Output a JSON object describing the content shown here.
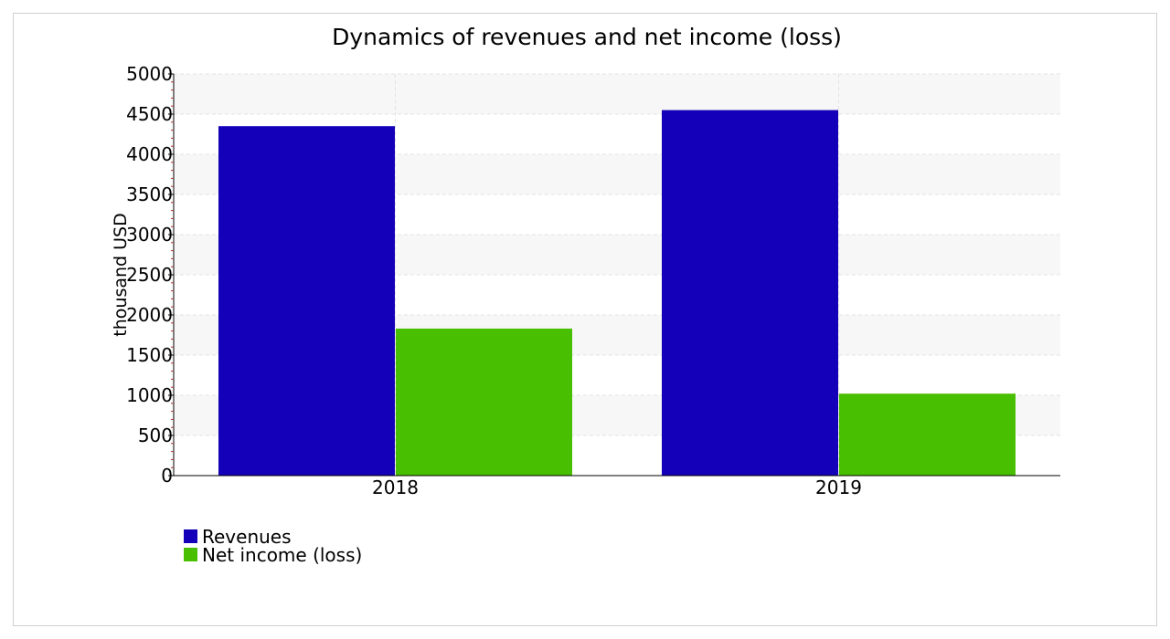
{
  "colors": {
    "revenues": "#1400b8",
    "net_income": "#48bf00",
    "band": "#f7f7f7",
    "grid": "#e3e3e3",
    "axis": "#000000",
    "frame": "#cfcfcf"
  },
  "chart_data": {
    "type": "bar",
    "title": "Dynamics of revenues and net income (loss)",
    "xlabel": "",
    "ylabel": "thousand USD",
    "categories": [
      "2018",
      "2019"
    ],
    "series": [
      {
        "name": "Revenues",
        "values": [
          4350,
          4550
        ],
        "color": "#1400b8"
      },
      {
        "name": "Net income (loss)",
        "values": [
          1830,
          1020
        ],
        "color": "#48bf00"
      }
    ],
    "ylim": [
      0,
      5000
    ],
    "yticks": [
      0,
      500,
      1000,
      1500,
      2000,
      2500,
      3000,
      3500,
      4000,
      4500,
      5000
    ],
    "grid": true,
    "legend_position": "bottom-left"
  }
}
